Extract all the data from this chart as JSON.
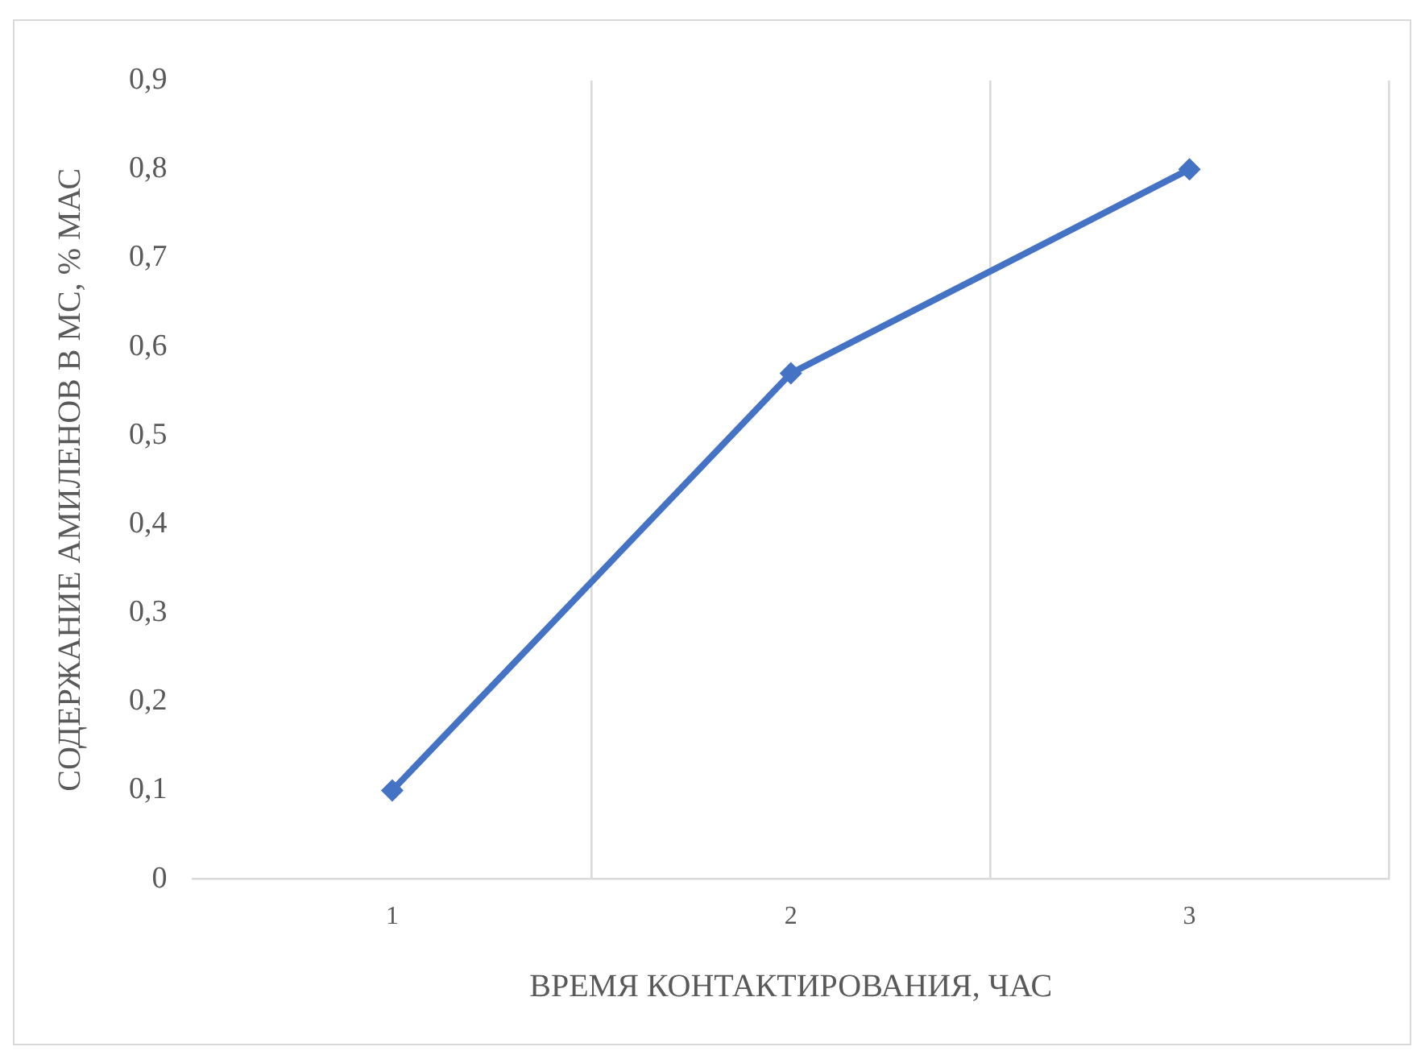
{
  "chart_data": {
    "type": "line",
    "xlabel": "ВРЕМЯ КОНТАКТИРОВАНИЯ, ЧАС",
    "ylabel": "СОДЕРЖАНИЕ АМИЛЕНОВ В МС, % МАС",
    "categories": [
      "1",
      "2",
      "3"
    ],
    "series": [
      {
        "color": "#4472c4",
        "values": [
          0.1,
          0.57,
          0.8
        ]
      }
    ],
    "ylim": [
      0,
      0.9
    ],
    "yticks": [
      0,
      {
        "value": 0.1,
        "label": "0,1"
      },
      {
        "value": 0.2,
        "label": "0,2"
      },
      {
        "value": 0.3,
        "label": "0,3"
      },
      {
        "value": 0.4,
        "label": "0,4"
      },
      {
        "value": 0.5,
        "label": "0,5"
      },
      {
        "value": 0.6,
        "label": "0,6"
      },
      {
        "value": 0.7,
        "label": "0,7"
      },
      {
        "value": 0.8,
        "label": "0,8"
      },
      {
        "value": 0.9,
        "label": "0,9"
      }
    ],
    "grid": "x",
    "legend": false,
    "marker": "diamond",
    "line_style": "solid"
  }
}
